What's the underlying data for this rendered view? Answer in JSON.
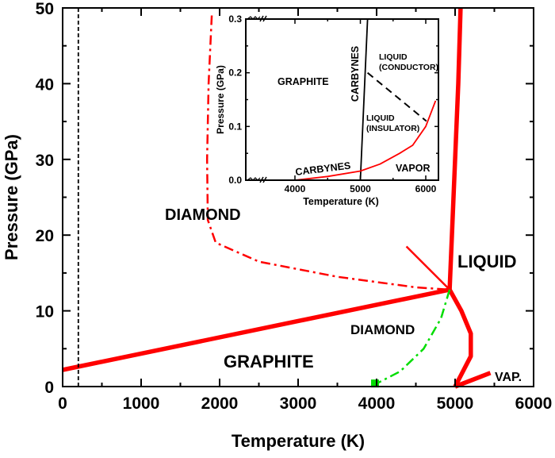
{
  "chart_data": [
    {
      "type": "line",
      "title": "",
      "xlabel": "Temperature (K)",
      "ylabel": "Pressure (GPa)",
      "xlim": [
        0,
        6000
      ],
      "ylim": [
        0,
        50
      ],
      "x_ticks": [
        0,
        1000,
        2000,
        3000,
        4000,
        5000,
        6000
      ],
      "y_ticks": [
        0,
        10,
        20,
        30,
        40,
        50
      ],
      "grid": false,
      "legend": null,
      "region_labels": [
        {
          "text": "DIAMOND",
          "x": 1900,
          "y": 23
        },
        {
          "text": "GRAPHITE",
          "x": 2700,
          "y": 3
        },
        {
          "text": "LIQUID",
          "x": 5800,
          "y": 16
        },
        {
          "text": "DIAMOND",
          "x": 4550,
          "y": 7.5
        },
        {
          "text": "VAP.",
          "x": 5800,
          "y": 1.5
        }
      ],
      "series": [
        {
          "name": "graphite-diamond boundary",
          "color": "#ff0000",
          "style": "solid-thick",
          "points": [
            [
              0,
              2.2
            ],
            [
              4930,
              12.8
            ]
          ]
        },
        {
          "name": "diamond melting line",
          "color": "#ff0000",
          "style": "solid-thick",
          "points": [
            [
              4930,
              12.8
            ],
            [
              4960,
              20
            ],
            [
              5000,
              30
            ],
            [
              5040,
              40
            ],
            [
              5070,
              50
            ]
          ]
        },
        {
          "name": "graphite melting line",
          "color": "#ff0000",
          "style": "solid-thick",
          "points": [
            [
              4930,
              12.8
            ],
            [
              5080,
              10
            ],
            [
              5200,
              7
            ],
            [
              5200,
              4
            ],
            [
              5100,
              2
            ],
            [
              5000,
              0
            ]
          ]
        },
        {
          "name": "vapor branch",
          "color": "#ff0000",
          "style": "solid-thick",
          "points": [
            [
              5000,
              0
            ],
            [
              5450,
              1.8
            ]
          ]
        },
        {
          "name": "metastable extension",
          "color": "#ff0000",
          "style": "solid-thin",
          "points": [
            [
              4930,
              12.8
            ],
            [
              4380,
              18.5
            ]
          ]
        },
        {
          "name": "diamond metastability limit",
          "color": "#ff0000",
          "style": "dash-dot",
          "points": [
            [
              1900,
              49
            ],
            [
              1860,
              40
            ],
            [
              1840,
              30
            ],
            [
              1850,
              22
            ],
            [
              1950,
              19
            ],
            [
              2500,
              16.5
            ],
            [
              3500,
              14.5
            ],
            [
              4500,
              13.1
            ],
            [
              4930,
              12.8
            ]
          ]
        },
        {
          "name": "graphite-to-diamond transition path",
          "color": "#00dd00",
          "style": "dash-dot",
          "points": [
            [
              4930,
              12.8
            ],
            [
              4820,
              9
            ],
            [
              4600,
              5
            ],
            [
              4300,
              2
            ],
            [
              4000,
              0.4
            ]
          ]
        },
        {
          "name": "room temperature",
          "color": "#000000",
          "style": "dashed",
          "points": [
            [
              200,
              0
            ],
            [
              200,
              50
            ]
          ]
        }
      ],
      "markers": [
        {
          "shape": "square",
          "color": "#00dd00",
          "x": 3980,
          "y": 0.3
        }
      ]
    },
    {
      "type": "line",
      "title": "inset",
      "xlabel": "Temperature (K)",
      "ylabel": "Pressure (GPa)",
      "xlim": [
        3250,
        6200
      ],
      "ylim": [
        0.0,
        0.3
      ],
      "x_ticks": [
        4000,
        5000,
        6000
      ],
      "y_ticks": [
        0.0,
        0.1,
        0.2,
        0.3
      ],
      "y_tick_labels": [
        "0.0",
        "0.1",
        "0.2",
        "0.3"
      ],
      "axis_break": true,
      "grid": false,
      "region_labels": [
        {
          "text": "GRAPHITE",
          "x": 4000,
          "y": 0.18
        },
        {
          "text": "CARBYNES",
          "x": 4880,
          "y": 0.2,
          "rotation": -90
        },
        {
          "text": "LIQUID",
          "x": 5300,
          "y": 0.22
        },
        {
          "text": "(CONDUCTOR)",
          "x": 5300,
          "y": 0.2
        },
        {
          "text": "LIQUID",
          "x": 5150,
          "y": 0.11
        },
        {
          "text": "(INSULATOR)",
          "x": 5150,
          "y": 0.09
        },
        {
          "text": "CARBYNES",
          "x": 4300,
          "y": 0.01
        },
        {
          "text": "VAPOR",
          "x": 5900,
          "y": 0.02
        }
      ],
      "series": [
        {
          "name": "carbyne boundary",
          "color": "#000000",
          "style": "solid",
          "points": [
            [
              5000,
              0.0
            ],
            [
              5110,
              0.3
            ]
          ]
        },
        {
          "name": "conductor-insulator boundary",
          "color": "#000000",
          "style": "dashed",
          "points": [
            [
              5110,
              0.2
            ],
            [
              6010,
              0.11
            ]
          ]
        },
        {
          "name": "vaporization curve",
          "color": "#ff0000",
          "style": "solid",
          "points": [
            [
              4000,
              0.0
            ],
            [
              4500,
              0.007
            ],
            [
              5000,
              0.017
            ],
            [
              5300,
              0.03
            ],
            [
              5600,
              0.05
            ],
            [
              5800,
              0.065
            ],
            [
              6000,
              0.1
            ],
            [
              6150,
              0.148
            ]
          ]
        }
      ]
    }
  ]
}
